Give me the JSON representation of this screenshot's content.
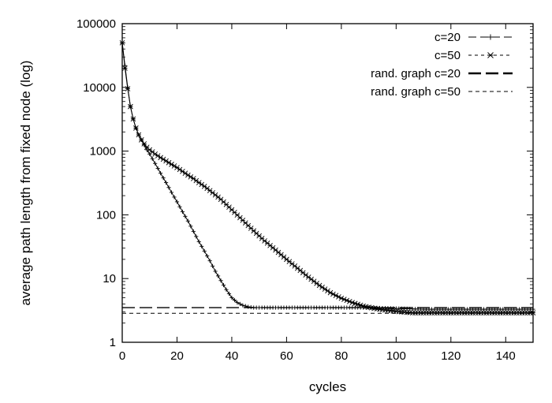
{
  "chart_data": {
    "type": "line",
    "xlabel": "cycles",
    "ylabel": "average path length from fixed node (log)",
    "xlim": [
      0,
      150
    ],
    "ylim": [
      1,
      100000
    ],
    "yscale": "log",
    "x_ticks": [
      0,
      20,
      40,
      60,
      80,
      100,
      120,
      140
    ],
    "y_ticks": [
      1,
      10,
      100,
      1000,
      10000,
      100000
    ],
    "y_tick_labels": [
      "1",
      "10",
      "100",
      "1000",
      "10000",
      "100000"
    ],
    "grid": false,
    "legend_position": "top-right",
    "series": [
      {
        "name": "c=20",
        "marker": "plus",
        "x": [
          0,
          1,
          2,
          3,
          4,
          5,
          6,
          7,
          8,
          9,
          10,
          12,
          14,
          16,
          18,
          20,
          22,
          24,
          26,
          28,
          30,
          32,
          34,
          36,
          38,
          40,
          42,
          44,
          46,
          48,
          50,
          55,
          60,
          70,
          80,
          90,
          100,
          110,
          120,
          130,
          140,
          150
        ],
        "y": [
          50000,
          22000,
          10000,
          5000,
          3200,
          2300,
          1800,
          1500,
          1250,
          1050,
          900,
          640,
          450,
          320,
          225,
          160,
          112,
          80,
          55,
          38,
          27,
          19,
          13,
          9.3,
          6.7,
          5,
          4.2,
          3.8,
          3.6,
          3.5,
          3.5,
          3.5,
          3.5,
          3.5,
          3.5,
          3.5,
          3.4,
          3.3,
          3.3,
          3.3,
          3.3,
          3.3
        ]
      },
      {
        "name": "c=50",
        "marker": "star",
        "x": [
          0,
          1,
          2,
          3,
          4,
          5,
          6,
          7,
          8,
          9,
          10,
          12,
          14,
          16,
          18,
          20,
          22,
          24,
          26,
          28,
          30,
          32,
          34,
          36,
          38,
          40,
          44,
          48,
          52,
          56,
          60,
          64,
          68,
          72,
          76,
          80,
          84,
          88,
          92,
          96,
          100,
          104,
          106,
          110,
          120,
          130,
          140,
          150
        ],
        "y": [
          50000,
          20000,
          9500,
          5000,
          3200,
          2300,
          1800,
          1500,
          1300,
          1150,
          1050,
          900,
          790,
          700,
          620,
          550,
          480,
          420,
          370,
          320,
          280,
          240,
          205,
          175,
          145,
          120,
          82,
          56,
          39,
          28,
          20,
          14.5,
          10.5,
          7.8,
          6,
          4.9,
          4.2,
          3.7,
          3.4,
          3.2,
          3.05,
          2.95,
          2.9,
          2.9,
          2.9,
          2.9,
          2.9,
          2.9
        ]
      },
      {
        "name": "rand. graph c=20",
        "style": "long-dash",
        "x": [
          0,
          150
        ],
        "y": [
          3.5,
          3.5
        ]
      },
      {
        "name": "rand. graph c=50",
        "style": "short-dash",
        "x": [
          0,
          150
        ],
        "y": [
          2.85,
          2.85
        ]
      }
    ]
  }
}
